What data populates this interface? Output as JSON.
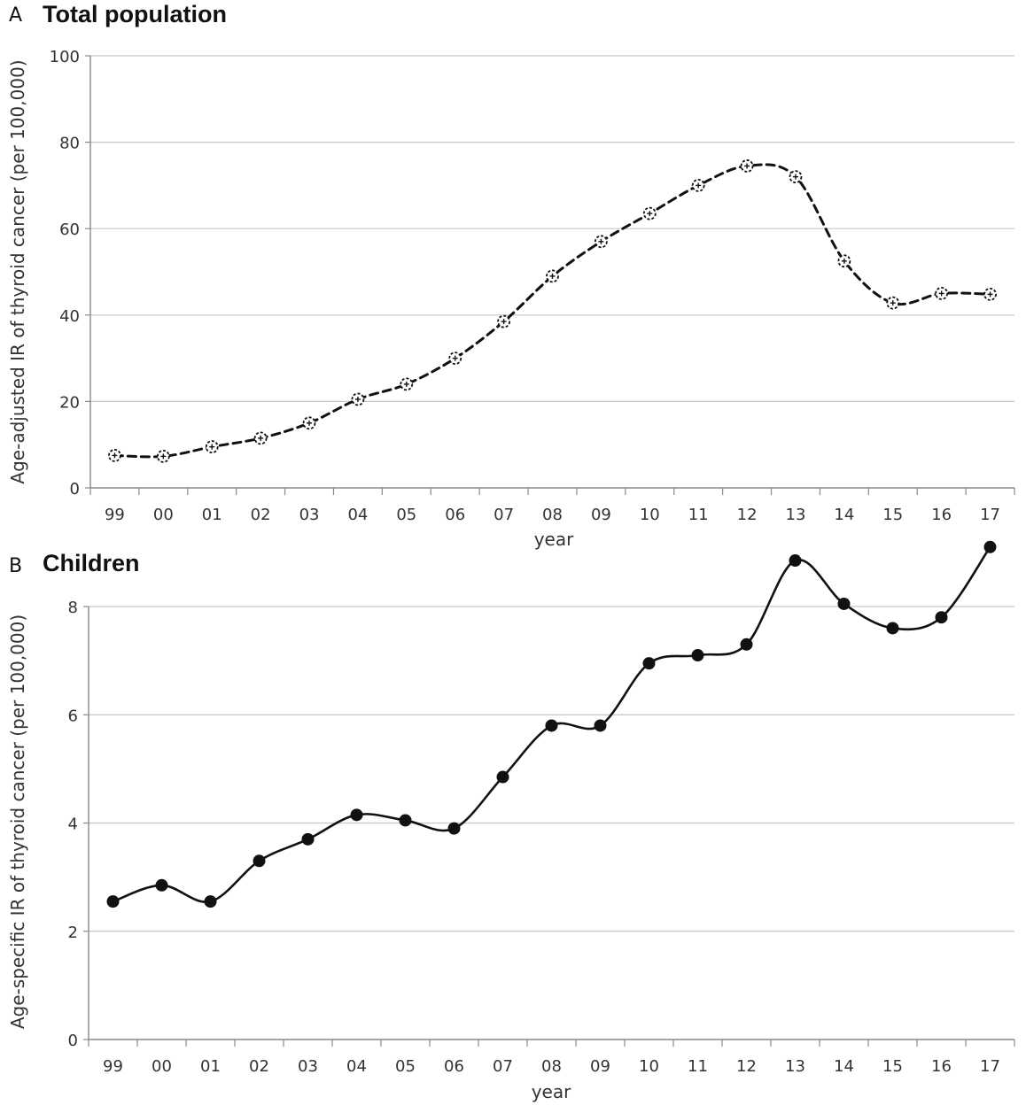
{
  "chart_data": [
    {
      "type": "line",
      "panel_label": "A",
      "title": "Total population",
      "xlabel": "year",
      "ylabel": "Age-adjusted IR of thyroid cancer (per 100,000)",
      "categories": [
        "99",
        "00",
        "01",
        "02",
        "03",
        "04",
        "05",
        "06",
        "07",
        "08",
        "09",
        "10",
        "11",
        "12",
        "13",
        "14",
        "15",
        "16",
        "17"
      ],
      "ylim": [
        0,
        100
      ],
      "yticks": [
        0,
        20,
        40,
        60,
        80,
        100
      ],
      "grid": true,
      "series": [
        {
          "name": "Total population",
          "line_style": "dashed",
          "marker": "open-circle",
          "color": "#111111",
          "values": [
            7.5,
            7.3,
            9.5,
            11.5,
            15.0,
            20.5,
            24.0,
            30.0,
            38.5,
            49.0,
            57.0,
            63.5,
            70.0,
            74.5,
            72.0,
            52.5,
            42.8,
            45.0,
            44.8
          ]
        }
      ]
    },
    {
      "type": "line",
      "panel_label": "B",
      "title": "Children",
      "xlabel": "year",
      "ylabel": "Age-specific IR of thyroid cancer (per 100,000)",
      "categories": [
        "99",
        "00",
        "01",
        "02",
        "03",
        "04",
        "05",
        "06",
        "07",
        "08",
        "09",
        "10",
        "11",
        "12",
        "13",
        "14",
        "15",
        "16",
        "17"
      ],
      "ylim": [
        0,
        8
      ],
      "yticks": [
        0,
        2,
        4,
        6,
        8
      ],
      "grid": true,
      "series": [
        {
          "name": "Children",
          "line_style": "solid",
          "marker": "filled-circle",
          "color": "#111111",
          "values": [
            2.55,
            2.85,
            2.55,
            3.3,
            3.7,
            4.15,
            4.05,
            3.9,
            4.85,
            5.8,
            5.8,
            6.95,
            7.1,
            7.3,
            8.85,
            8.05,
            7.6,
            7.8,
            9.1
          ]
        }
      ]
    }
  ]
}
